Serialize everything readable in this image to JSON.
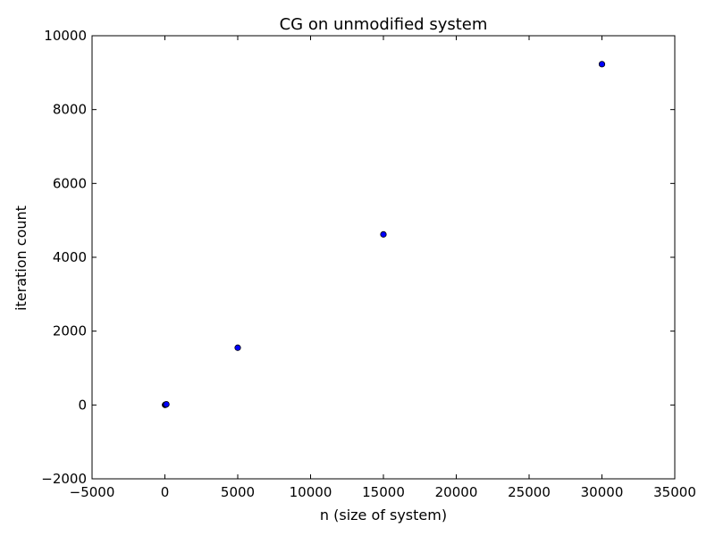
{
  "chart_data": {
    "type": "scatter",
    "title": "CG on unmodified system",
    "xlabel": "n (size of system)",
    "ylabel": "iteration count",
    "xlim": [
      -5000,
      35000
    ],
    "ylim": [
      -2000,
      10000
    ],
    "xticks": [
      -5000,
      0,
      5000,
      10000,
      15000,
      20000,
      25000,
      30000,
      35000
    ],
    "yticks": [
      -2000,
      0,
      2000,
      4000,
      6000,
      8000,
      10000
    ],
    "xtick_labels": [
      "−5000",
      "0",
      "5000",
      "10000",
      "15000",
      "20000",
      "25000",
      "30000",
      "35000"
    ],
    "ytick_labels": [
      "−2000",
      "0",
      "2000",
      "4000",
      "6000",
      "8000",
      "10000"
    ],
    "grid": false,
    "legend": "none",
    "series": [
      {
        "marker_color": "#0000ff",
        "points": [
          {
            "x": 10,
            "y": 2
          },
          {
            "x": 50,
            "y": 10
          },
          {
            "x": 100,
            "y": 18
          },
          {
            "x": 5000,
            "y": 1550
          },
          {
            "x": 15000,
            "y": 4620
          },
          {
            "x": 30000,
            "y": 9230
          }
        ]
      }
    ]
  }
}
